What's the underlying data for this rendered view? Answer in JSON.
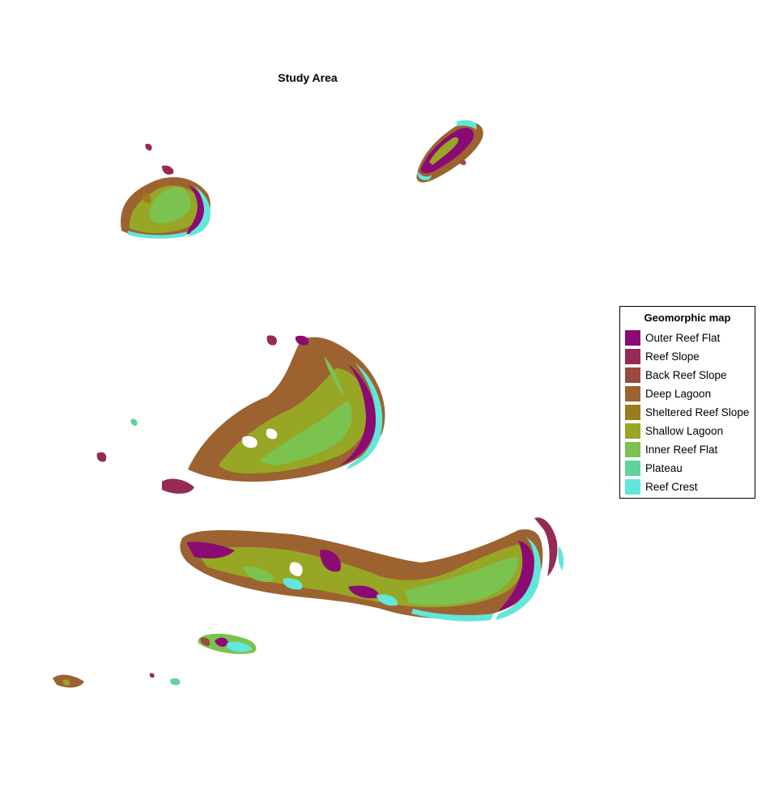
{
  "title": "Study Area",
  "legend": {
    "title": "Geomorphic map",
    "items": [
      {
        "label": "Outer Reef Flat",
        "color": "#8b0a73"
      },
      {
        "label": "Reef Slope",
        "color": "#952a55"
      },
      {
        "label": "Back Reef Slope",
        "color": "#9a4a3e"
      },
      {
        "label": "Deep Lagoon",
        "color": "#9c6330"
      },
      {
        "label": "Sheltered Reef Slope",
        "color": "#9a7c1e"
      },
      {
        "label": "Shallow Lagoon",
        "color": "#98a625"
      },
      {
        "label": "Inner Reef Flat",
        "color": "#7cc24e"
      },
      {
        "label": "Plateau",
        "color": "#5fd39a"
      },
      {
        "label": "Reef Crest",
        "color": "#63e6dc"
      }
    ]
  }
}
